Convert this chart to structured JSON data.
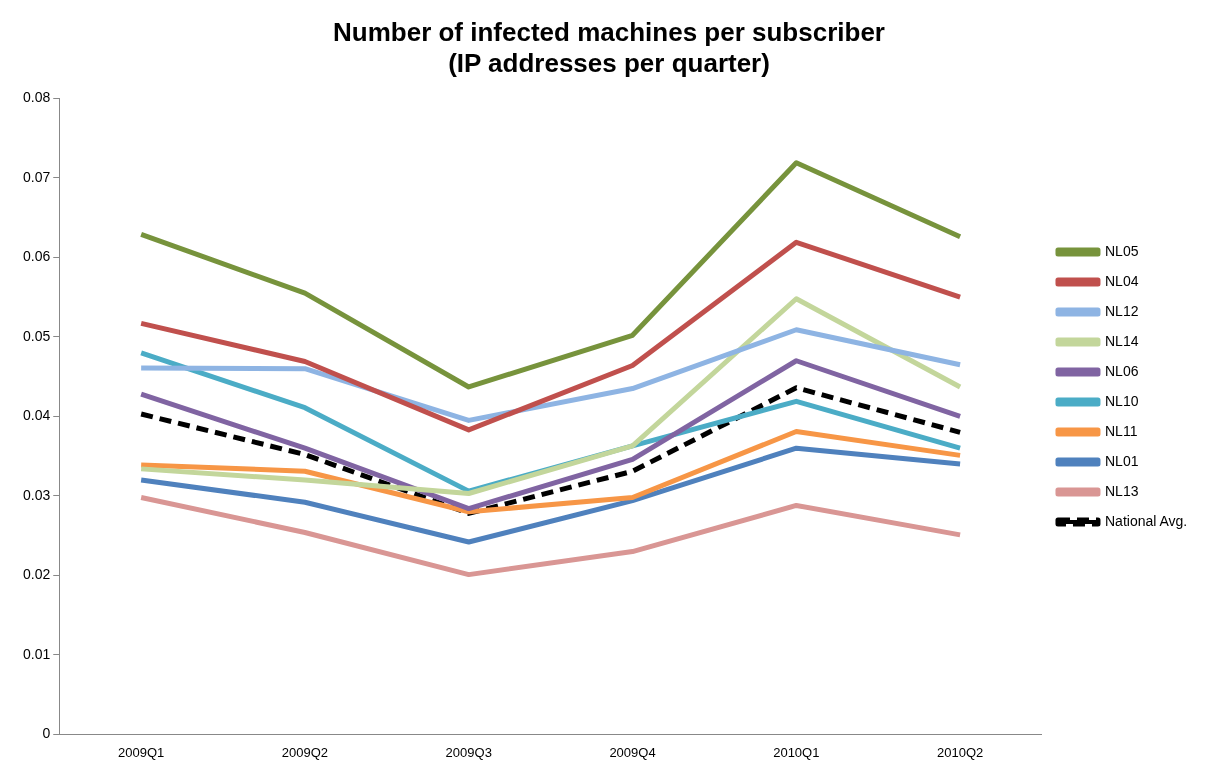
{
  "chart_data": {
    "type": "line",
    "title": "Number of infected machines per subscriber\n(IP addresses per quarter)",
    "categories": [
      "2009Q1",
      "2009Q2",
      "2009Q3",
      "2009Q4",
      "2010Q1",
      "2010Q2"
    ],
    "ylim": [
      0,
      0.08
    ],
    "yticks": [
      0,
      0.01,
      0.02,
      0.03,
      0.04,
      0.05,
      0.06,
      0.07,
      0.08
    ],
    "grid": false,
    "legend": "right",
    "marker": "none",
    "series": [
      {
        "name": "NL05",
        "color": "#77933c",
        "values": [
          0.0629,
          0.0555,
          0.0437,
          0.0502,
          0.0719,
          0.0626
        ]
      },
      {
        "name": "NL04",
        "color": "#c0504d",
        "values": [
          0.0517,
          0.0469,
          0.0383,
          0.0464,
          0.0619,
          0.055
        ]
      },
      {
        "name": "NL12",
        "color": "#8eb4e3",
        "values": [
          0.0461,
          0.046,
          0.0395,
          0.0435,
          0.0509,
          0.0465
        ]
      },
      {
        "name": "NL14",
        "color": "#c3d69b",
        "values": [
          0.0334,
          0.032,
          0.0303,
          0.0363,
          0.0548,
          0.0437
        ]
      },
      {
        "name": "NL06",
        "color": "#8064a2",
        "values": [
          0.0428,
          0.036,
          0.0284,
          0.0346,
          0.047,
          0.04
        ]
      },
      {
        "name": "NL10",
        "color": "#4bacc6",
        "values": [
          0.048,
          0.0411,
          0.0306,
          0.0363,
          0.0419,
          0.036
        ]
      },
      {
        "name": "NL11",
        "color": "#f79646",
        "values": [
          0.0339,
          0.0331,
          0.028,
          0.0298,
          0.0381,
          0.0351
        ]
      },
      {
        "name": "NL01",
        "color": "#4f81bd",
        "values": [
          0.032,
          0.0292,
          0.0242,
          0.0294,
          0.036,
          0.034
        ]
      },
      {
        "name": "NL13",
        "color": "#d99694",
        "values": [
          0.0298,
          0.0254,
          0.0201,
          0.023,
          0.0288,
          0.0251
        ]
      },
      {
        "name": "National Avg.",
        "color": "#000000",
        "line_style": "dashed",
        "values": [
          0.0403,
          0.0352,
          0.0278,
          0.0331,
          0.0436,
          0.038
        ]
      }
    ]
  }
}
